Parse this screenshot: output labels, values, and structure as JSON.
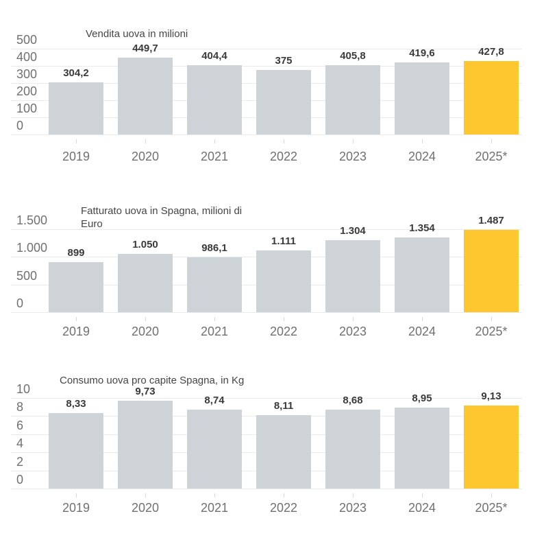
{
  "page": {
    "background": "#ffffff"
  },
  "colors": {
    "bar": "#ced3d7",
    "highlight_bar": "#fec72f",
    "gridline": "#e9eaeb",
    "axis_text": "#6f7072",
    "value_text": "#3a3a3a",
    "title_text": "#454545"
  },
  "chart_data": [
    {
      "type": "bar",
      "title": "Vendita uova in milioni",
      "categories": [
        "2019",
        "2020",
        "2021",
        "2022",
        "2023",
        "2024",
        "2025*"
      ],
      "values": [
        304.2,
        449.7,
        404.4,
        375,
        405.8,
        419.6,
        427.8
      ],
      "value_labels": [
        "304,2",
        "449,7",
        "404,4",
        "375",
        "405,8",
        "419,6",
        "427,8"
      ],
      "xlabel": "",
      "ylabel": "",
      "ylim": [
        0,
        500
      ],
      "yticks": [
        0,
        100,
        200,
        300,
        400,
        500
      ],
      "ytick_labels": [
        "0",
        "100",
        "200",
        "300",
        "400",
        "500"
      ],
      "grid": true,
      "legend": "none",
      "highlight_index": 6,
      "highlight_category": "2025*"
    },
    {
      "type": "bar",
      "title": "Fatturato uova in Spagna, milioni di Euro",
      "categories": [
        "2019",
        "2020",
        "2021",
        "2022",
        "2023",
        "2024",
        "2025*"
      ],
      "values": [
        899,
        1050,
        986.1,
        1111,
        1304,
        1354,
        1487
      ],
      "value_labels": [
        "899",
        "1.050",
        "986,1",
        "1.111",
        "1.304",
        "1.354",
        "1.487"
      ],
      "xlabel": "",
      "ylabel": "",
      "ylim": [
        0,
        1500
      ],
      "yticks": [
        0,
        500,
        1000,
        1500
      ],
      "ytick_labels": [
        "0",
        "500",
        "1.000",
        "1.500"
      ],
      "grid": true,
      "legend": "none",
      "highlight_index": 6,
      "highlight_category": "2025*"
    },
    {
      "type": "bar",
      "title": "Consumo uova pro capite Spagna, in Kg",
      "categories": [
        "2019",
        "2020",
        "2021",
        "2022",
        "2023",
        "2024",
        "2025*"
      ],
      "values": [
        8.33,
        9.73,
        8.74,
        8.11,
        8.68,
        8.95,
        9.13
      ],
      "value_labels": [
        "8,33",
        "9,73",
        "8,74",
        "8,11",
        "8,68",
        "8,95",
        "9,13"
      ],
      "xlabel": "",
      "ylabel": "",
      "ylim": [
        0,
        10
      ],
      "yticks": [
        0,
        2,
        4,
        6,
        8,
        10
      ],
      "ytick_labels": [
        "0",
        "2",
        "4",
        "6",
        "8",
        "10"
      ],
      "grid": true,
      "legend": "none",
      "highlight_index": 6,
      "highlight_category": "2025*"
    }
  ]
}
